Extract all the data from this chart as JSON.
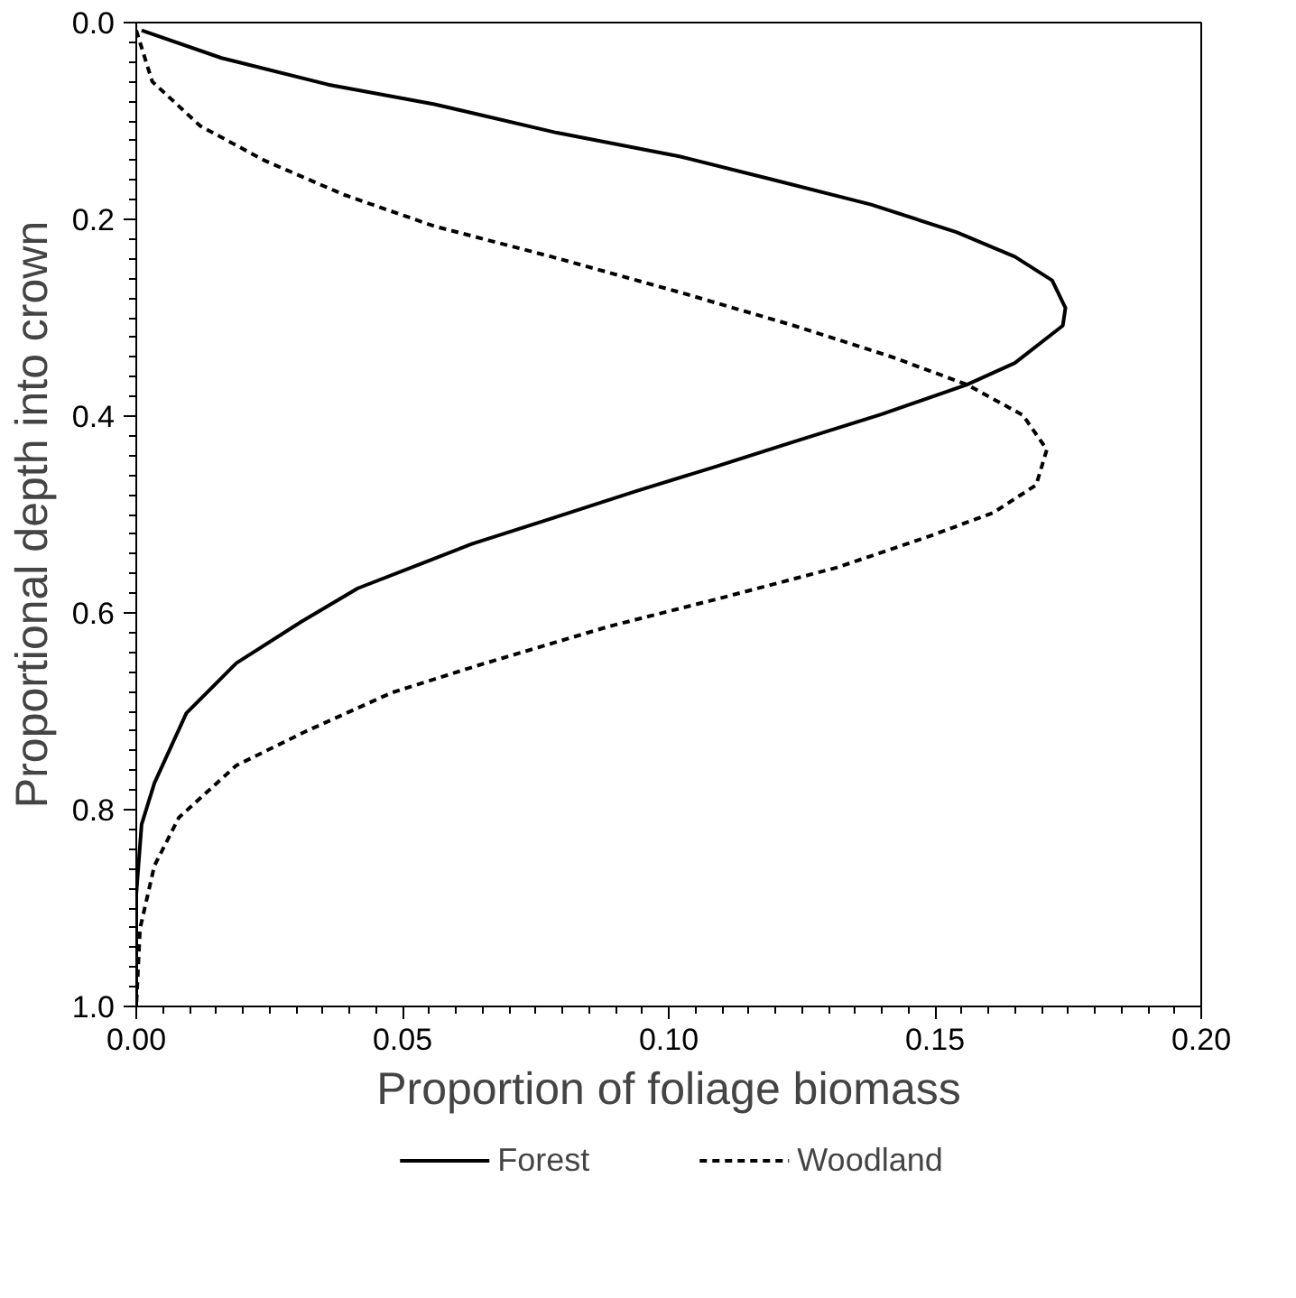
{
  "chart_data": {
    "type": "line",
    "xlabel": "Proportion of foliage biomass",
    "ylabel": "Proportional depth into crown",
    "xlim": [
      0.0,
      0.2
    ],
    "xticks": [
      {
        "value": 0,
        "label": "0.00"
      },
      0.05,
      {
        "value": 0.1,
        "label": "0.10"
      },
      0.15,
      {
        "value": 0.2,
        "label": "0.20"
      }
    ],
    "ylim": [
      1.0,
      0.0
    ],
    "yticks": [
      {
        "value": 0,
        "label": "0.0"
      },
      0.2,
      0.4,
      0.6,
      0.8,
      {
        "value": 1,
        "label": "1.0"
      }
    ],
    "grid": false,
    "legend": "bottom",
    "marker": "none",
    "series": [
      {
        "name": "Forest",
        "color": "#000000",
        "line_style": "solid",
        "x": [
          0.001,
          0.016,
          0.036,
          0.056,
          0.079,
          0.102,
          0.119,
          0.138,
          0.154,
          0.165,
          0.172,
          0.1745,
          0.174,
          0.165,
          0.156,
          0.14,
          0.1235,
          0.109,
          0.094,
          0.078,
          0.063,
          0.054,
          0.0416,
          0.031,
          0.0188,
          0.0094,
          0.0034,
          0.001,
          0.0,
          0.0
        ],
        "values": [
          0.008,
          0.036,
          0.063,
          0.083,
          0.112,
          0.136,
          0.159,
          0.185,
          0.213,
          0.238,
          0.262,
          0.29,
          0.308,
          0.346,
          0.368,
          0.398,
          0.426,
          0.451,
          0.476,
          0.504,
          0.53,
          0.549,
          0.575,
          0.609,
          0.651,
          0.702,
          0.773,
          0.815,
          0.886,
          1.0
        ]
      },
      {
        "name": "Woodland",
        "color": "#000000",
        "line_style": "dashed",
        "x": [
          0.0,
          0.003,
          0.012,
          0.024,
          0.039,
          0.056,
          0.078,
          0.102,
          0.1235,
          0.142,
          0.156,
          0.1665,
          0.171,
          0.169,
          0.161,
          0.149,
          0.1315,
          0.109,
          0.0886,
          0.0644,
          0.048,
          0.032,
          0.0188,
          0.008,
          0.0034,
          0.0007,
          0.0
        ],
        "values": [
          0.008,
          0.06,
          0.105,
          0.14,
          0.175,
          0.207,
          0.238,
          0.274,
          0.308,
          0.34,
          0.368,
          0.399,
          0.434,
          0.47,
          0.498,
          0.522,
          0.554,
          0.586,
          0.614,
          0.653,
          0.681,
          0.72,
          0.755,
          0.808,
          0.857,
          0.921,
          1.0
        ]
      }
    ]
  }
}
